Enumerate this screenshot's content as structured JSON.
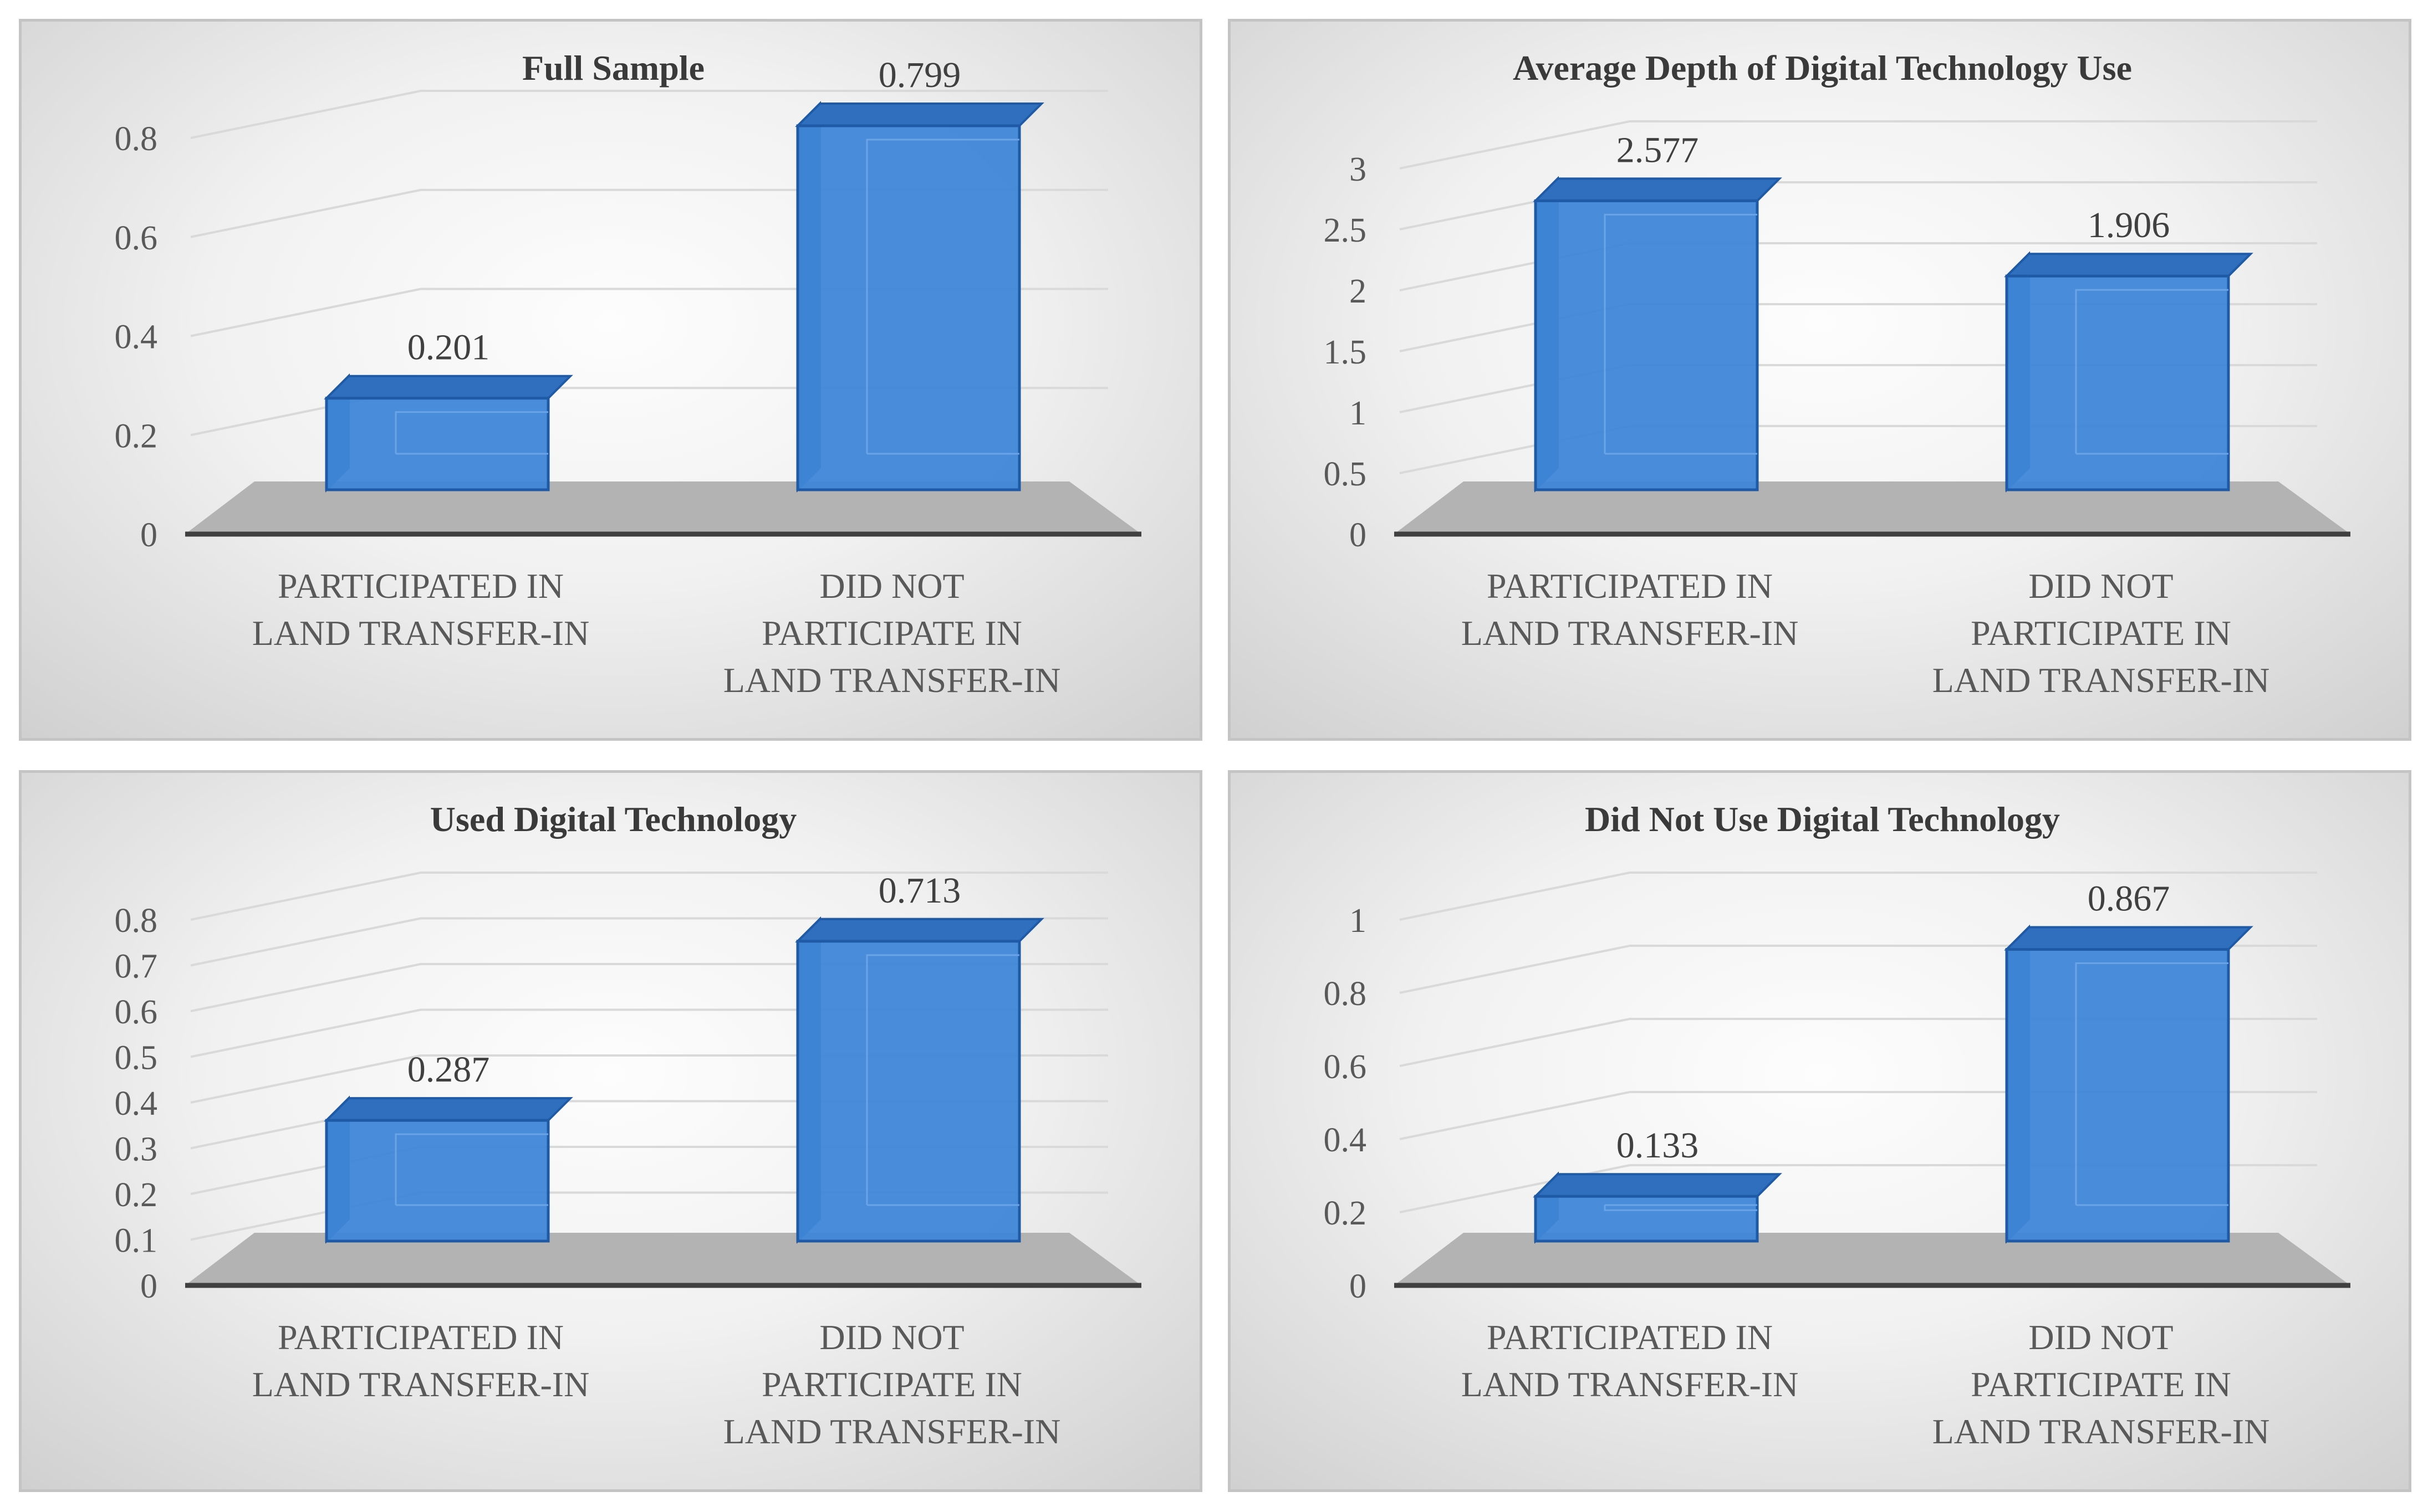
{
  "chart_data": [
    {
      "type": "bar",
      "title": "Full Sample",
      "categories": [
        "PARTICIPATED IN LAND TRANSFER-IN",
        "DID NOT PARTICIPATE IN LAND TRANSFER-IN"
      ],
      "values": [
        0.201,
        0.799
      ],
      "value_labels": [
        "0.201",
        "0.799"
      ],
      "yticks": [
        "0",
        "0.2",
        "0.4",
        "0.6",
        "0.8"
      ],
      "ylim": [
        0,
        0.8
      ],
      "bar_color": "#3f87d8",
      "style": "3d-column"
    },
    {
      "type": "bar",
      "title": "Average Depth of Digital Technology Use",
      "categories": [
        "PARTICIPATED IN LAND TRANSFER-IN",
        "DID NOT PARTICIPATE IN LAND TRANSFER-IN"
      ],
      "values": [
        2.577,
        1.906
      ],
      "value_labels": [
        "2.577",
        "1.906"
      ],
      "yticks": [
        "0",
        "0.5",
        "1",
        "1.5",
        "2",
        "2.5",
        "3"
      ],
      "ylim": [
        0,
        3
      ],
      "bar_color": "#3f87d8",
      "style": "3d-column"
    },
    {
      "type": "bar",
      "title": "Used Digital Technology",
      "categories": [
        "PARTICIPATED IN LAND TRANSFER-IN",
        "DID NOT PARTICIPATE IN LAND TRANSFER-IN"
      ],
      "values": [
        0.287,
        0.713
      ],
      "value_labels": [
        "0.287",
        "0.713"
      ],
      "yticks": [
        "0",
        "0.1",
        "0.2",
        "0.3",
        "0.4",
        "0.5",
        "0.6",
        "0.7",
        "0.8"
      ],
      "ylim": [
        0,
        0.8
      ],
      "bar_color": "#3f87d8",
      "style": "3d-column"
    },
    {
      "type": "bar",
      "title": "Did Not Use Digital Technology",
      "categories": [
        "PARTICIPATED IN LAND TRANSFER-IN",
        "DID NOT PARTICIPATE IN LAND TRANSFER-IN"
      ],
      "values": [
        0.133,
        0.867
      ],
      "value_labels": [
        "0.133",
        "0.867"
      ],
      "yticks": [
        "0",
        "0.2",
        "0.4",
        "0.6",
        "0.8",
        "1"
      ],
      "ylim": [
        0,
        1
      ],
      "bar_color": "#3f87d8",
      "style": "3d-column"
    }
  ]
}
